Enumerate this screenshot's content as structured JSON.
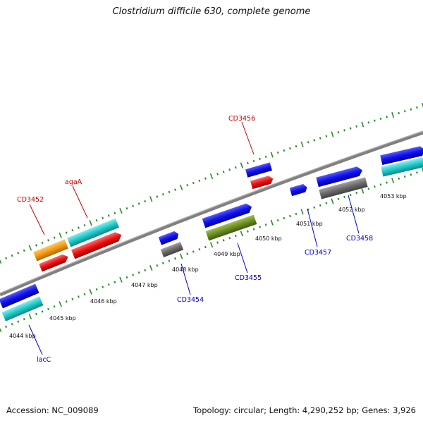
{
  "title": "Clostridium difficile 630, complete genome",
  "footer": {
    "accession": "Accession: NC_009089",
    "summary": "Topology: circular; Length: 4,290,252 bp; Genes: 3,926"
  },
  "kbp_labels": [
    "4044 kbp",
    "4045 kbp",
    "4046 kbp",
    "4047 kbp",
    "4048 kbp",
    "4049 kbp",
    "4050 kbp",
    "4051 kbp",
    "4052 kbp",
    "4053 kbp"
  ],
  "gene_labels": {
    "CD3452": "CD3452",
    "agaA": "agaA",
    "CD3456": "CD3456",
    "lacC": "lacC",
    "CD3454": "CD3454",
    "CD3455": "CD3455",
    "CD3457": "CD3457",
    "CD3458": "CD3458"
  },
  "colors": {
    "backbone": "#808080",
    "tick": "#2a8a2a",
    "label_forward": "#cc0000",
    "label_reverse": "#0000cc",
    "blue": "#1010ee",
    "cyan": "#20c8c8",
    "red": "#ee1010",
    "orange": "#f59a10",
    "gray": "#6a6a6a",
    "olive": "#6b8e23"
  }
}
